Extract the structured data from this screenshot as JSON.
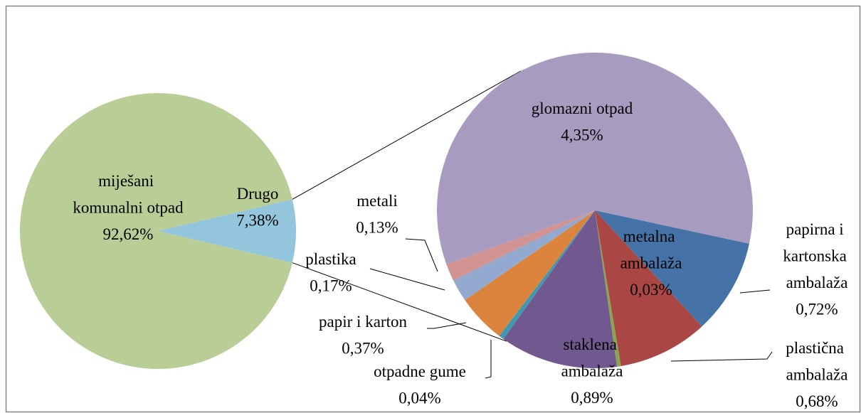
{
  "chart_data": [
    {
      "type": "pie",
      "categories": [
        "miješani komunalni otpad",
        "Drugo"
      ],
      "values": [
        92.62,
        7.38
      ],
      "value_labels": [
        "92,62%",
        "7,38%"
      ],
      "colors": [
        "#b9cd96",
        "#93c5dc"
      ]
    },
    {
      "type": "pie",
      "categories": [
        "glomazni otpad",
        "papirna i kartonska ambalaža",
        "plastična ambalaža",
        "metalna ambalaža",
        "staklena ambalaža",
        "otpadne gume",
        "papir i karton",
        "plastika",
        "metali"
      ],
      "values": [
        4.35,
        0.72,
        0.68,
        0.03,
        0.89,
        0.04,
        0.37,
        0.17,
        0.13
      ],
      "value_labels": [
        "4,35%",
        "0,72%",
        "0,68%",
        "0,03%",
        "0,89%",
        "0,04%",
        "0,37%",
        "0,17%",
        "0,13%"
      ],
      "colors": [
        "#a89bc0",
        "#4572a7",
        "#aa4643",
        "#89a54e",
        "#71588f",
        "#4198af",
        "#db843d",
        "#93a9cf",
        "#d19392"
      ]
    }
  ]
}
